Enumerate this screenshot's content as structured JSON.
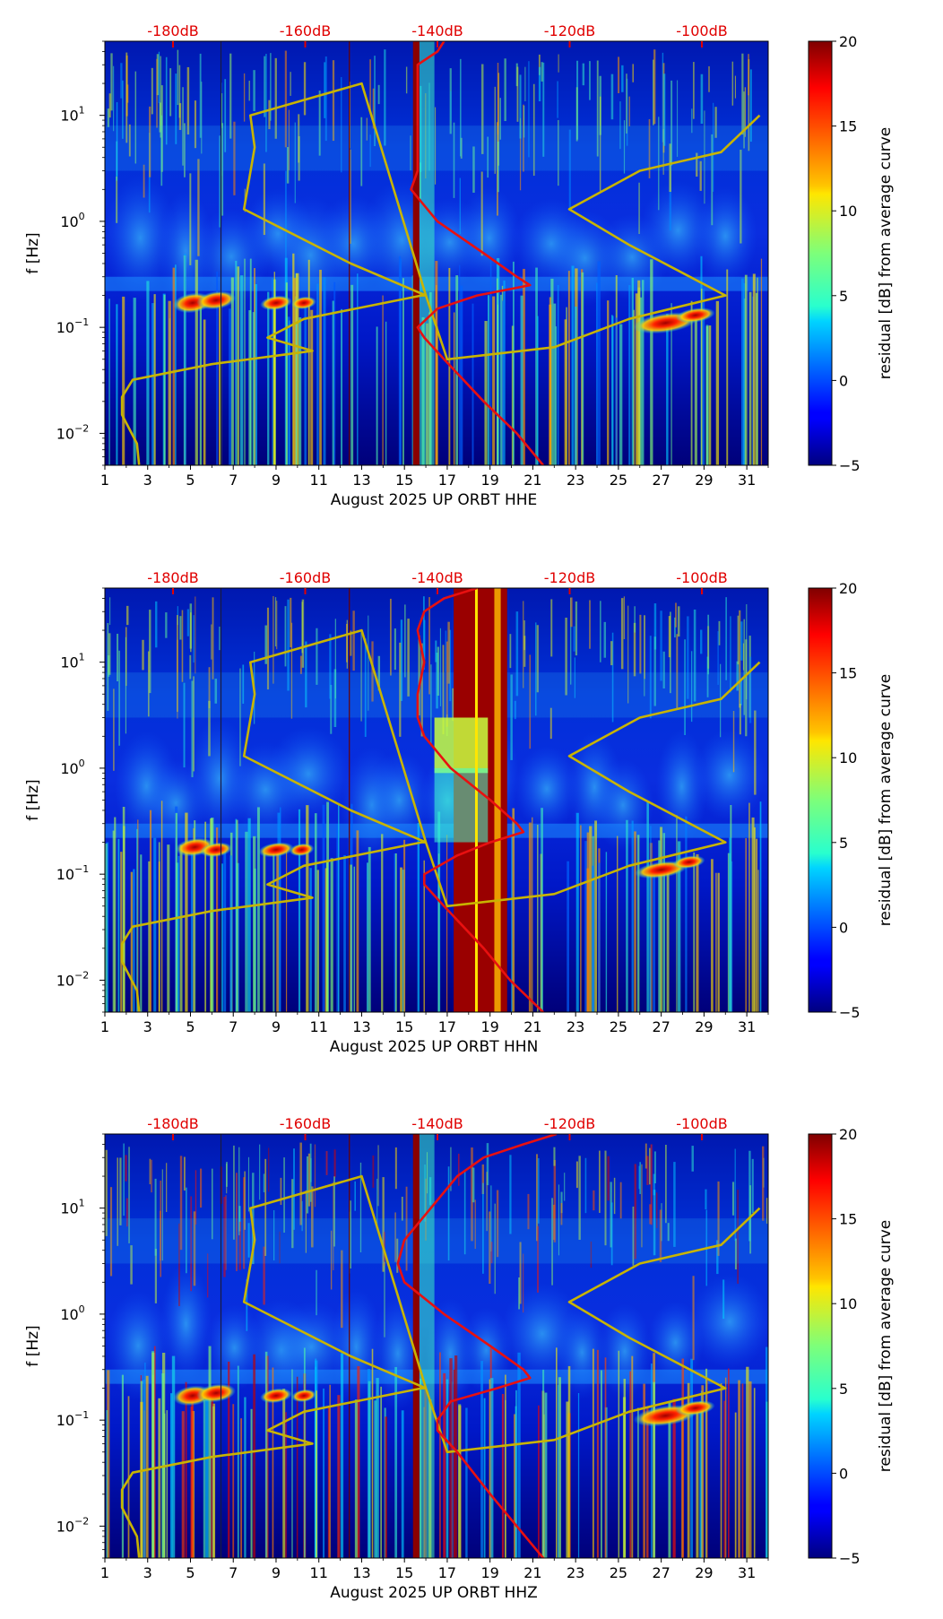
{
  "chart_data": [
    {
      "type": "heatmap",
      "component": "HHE",
      "xlabel": "August 2025 UP ORBT  HHE",
      "ylabel": "f [Hz]",
      "x_ticks": [
        "1",
        "3",
        "5",
        "7",
        "9",
        "11",
        "13",
        "15",
        "17",
        "19",
        "21",
        "23",
        "25",
        "27",
        "29",
        "31"
      ],
      "xlim": [
        1,
        32
      ],
      "ylim": [
        0.005,
        50
      ],
      "y_scale": "log",
      "y_ticks": [
        "10^-2",
        "10^-1",
        "10^0",
        "10^1"
      ],
      "top_axis_labels": [
        "-180dB",
        "-160dB",
        "-140dB",
        "-120dB",
        "-100dB"
      ],
      "top_axis_db": [
        -180,
        -160,
        -140,
        -120,
        -100
      ],
      "colorbar": {
        "label": "residual [dB] from average curve",
        "range": [
          -5,
          20
        ],
        "ticks": [
          "-5",
          "0",
          "5",
          "10",
          "15",
          "20"
        ]
      },
      "dark_bands": [
        {
          "day": 6.4,
          "width": 0.05,
          "color": "#1a1a40"
        },
        {
          "day": 12.4,
          "width": 0.05,
          "color": "#6a0000"
        },
        {
          "day": 15.4,
          "width": 0.3,
          "color": "#8b0000"
        }
      ],
      "red_curve_db": [
        [
          50,
          -139
        ],
        [
          40,
          -140
        ],
        [
          30,
          -143
        ],
        [
          20,
          -143
        ],
        [
          10,
          -143
        ],
        [
          5,
          -143
        ],
        [
          3,
          -143
        ],
        [
          2,
          -144
        ],
        [
          1,
          -140
        ],
        [
          0.5,
          -133
        ],
        [
          0.3,
          -128
        ],
        [
          0.25,
          -126
        ],
        [
          0.2,
          -134
        ],
        [
          0.15,
          -140
        ],
        [
          0.1,
          -143
        ],
        [
          0.08,
          -142
        ],
        [
          0.05,
          -139
        ],
        [
          0.02,
          -133
        ],
        [
          0.01,
          -128
        ],
        [
          0.005,
          -124
        ]
      ],
      "yellow_curve": [
        [
          2.6,
          0.005
        ],
        [
          2.5,
          0.008
        ],
        [
          1.8,
          0.015
        ],
        [
          1.8,
          0.022
        ],
        [
          2.3,
          0.032
        ],
        [
          6,
          0.045
        ],
        [
          10.7,
          0.06
        ],
        [
          8.6,
          0.08
        ],
        [
          10.3,
          0.12
        ],
        [
          15.8,
          0.2
        ],
        [
          16,
          0.2
        ],
        [
          12.5,
          0.4
        ],
        [
          7.5,
          1.3
        ],
        [
          8,
          5
        ],
        [
          7.8,
          10
        ],
        [
          13,
          20
        ],
        [
          16,
          0.2
        ],
        [
          17,
          0.05
        ],
        [
          22,
          0.065
        ],
        [
          25.5,
          0.12
        ],
        [
          30,
          0.2
        ],
        [
          25.5,
          0.6
        ],
        [
          22.7,
          1.3
        ],
        [
          26,
          3
        ],
        [
          29.8,
          4.5
        ],
        [
          31.6,
          10
        ]
      ]
    },
    {
      "type": "heatmap",
      "component": "HHN",
      "xlabel": "August 2025 UP ORBT  HHN",
      "ylabel": "f [Hz]",
      "x_ticks": [
        "1",
        "3",
        "5",
        "7",
        "9",
        "11",
        "13",
        "15",
        "17",
        "19",
        "21",
        "23",
        "25",
        "27",
        "29",
        "31"
      ],
      "xlim": [
        1,
        32
      ],
      "ylim": [
        0.005,
        50
      ],
      "y_scale": "log",
      "y_ticks": [
        "10^-2",
        "10^-1",
        "10^0",
        "10^1"
      ],
      "top_axis_labels": [
        "-180dB",
        "-160dB",
        "-140dB",
        "-120dB",
        "-100dB"
      ],
      "top_axis_db": [
        -180,
        -160,
        -140,
        -120,
        -100
      ],
      "colorbar": {
        "label": "residual [dB] from average curve",
        "range": [
          -5,
          20
        ],
        "ticks": [
          "-5",
          "0",
          "5",
          "10",
          "15",
          "20"
        ]
      },
      "dark_bands": [
        {
          "day": 6.4,
          "width": 0.05,
          "color": "#1a1a40"
        },
        {
          "day": 12.4,
          "width": 0.05,
          "color": "#6a0000"
        },
        {
          "day": 17.3,
          "width": 2.5,
          "color": "#9a0000"
        }
      ],
      "red_curve_db": [
        [
          50,
          -134
        ],
        [
          40,
          -139
        ],
        [
          30,
          -142
        ],
        [
          20,
          -143
        ],
        [
          10,
          -142
        ],
        [
          5,
          -143
        ],
        [
          3,
          -143
        ],
        [
          2,
          -142
        ],
        [
          1,
          -138
        ],
        [
          0.5,
          -132
        ],
        [
          0.3,
          -128
        ],
        [
          0.25,
          -127
        ],
        [
          0.2,
          -132
        ],
        [
          0.15,
          -137
        ],
        [
          0.1,
          -142
        ],
        [
          0.08,
          -142
        ],
        [
          0.05,
          -139
        ],
        [
          0.02,
          -133
        ],
        [
          0.01,
          -129
        ],
        [
          0.005,
          -124
        ]
      ],
      "yellow_curve": [
        [
          2.6,
          0.005
        ],
        [
          2.5,
          0.008
        ],
        [
          1.8,
          0.015
        ],
        [
          1.8,
          0.022
        ],
        [
          2.3,
          0.032
        ],
        [
          6,
          0.045
        ],
        [
          10.7,
          0.06
        ],
        [
          8.6,
          0.08
        ],
        [
          10.3,
          0.12
        ],
        [
          15.8,
          0.2
        ],
        [
          16,
          0.2
        ],
        [
          12.5,
          0.4
        ],
        [
          7.5,
          1.3
        ],
        [
          8,
          5
        ],
        [
          7.8,
          10
        ],
        [
          13,
          20
        ],
        [
          16,
          0.2
        ],
        [
          17,
          0.05
        ],
        [
          22,
          0.065
        ],
        [
          25.5,
          0.12
        ],
        [
          30,
          0.2
        ],
        [
          25.5,
          0.6
        ],
        [
          22.7,
          1.3
        ],
        [
          26,
          3
        ],
        [
          29.8,
          4.5
        ],
        [
          31.6,
          10
        ]
      ]
    },
    {
      "type": "heatmap",
      "component": "HHZ",
      "xlabel": "August 2025 UP ORBT  HHZ",
      "ylabel": "f [Hz]",
      "x_ticks": [
        "1",
        "3",
        "5",
        "7",
        "9",
        "11",
        "13",
        "15",
        "17",
        "19",
        "21",
        "23",
        "25",
        "27",
        "29",
        "31"
      ],
      "xlim": [
        1,
        32
      ],
      "ylim": [
        0.005,
        50
      ],
      "y_scale": "log",
      "y_ticks": [
        "10^-2",
        "10^-1",
        "10^0",
        "10^1"
      ],
      "top_axis_labels": [
        "-180dB",
        "-160dB",
        "-140dB",
        "-120dB",
        "-100dB"
      ],
      "top_axis_db": [
        -180,
        -160,
        -140,
        -120,
        -100
      ],
      "colorbar": {
        "label": "residual [dB] from average curve",
        "range": [
          -5,
          20
        ],
        "ticks": [
          "-5",
          "0",
          "5",
          "10",
          "15",
          "20"
        ]
      },
      "dark_bands": [
        {
          "day": 6.4,
          "width": 0.05,
          "color": "#1a1a40"
        },
        {
          "day": 12.4,
          "width": 0.05,
          "color": "#6a0000"
        },
        {
          "day": 15.4,
          "width": 0.3,
          "color": "#8b0000"
        }
      ],
      "red_curve_db": [
        [
          50,
          -122
        ],
        [
          40,
          -127
        ],
        [
          30,
          -133
        ],
        [
          20,
          -137
        ],
        [
          10,
          -141
        ],
        [
          5,
          -145
        ],
        [
          3,
          -146
        ],
        [
          2,
          -145
        ],
        [
          1,
          -139
        ],
        [
          0.5,
          -132
        ],
        [
          0.3,
          -127
        ],
        [
          0.25,
          -126
        ],
        [
          0.2,
          -131
        ],
        [
          0.15,
          -138
        ],
        [
          0.1,
          -140
        ],
        [
          0.08,
          -140
        ],
        [
          0.05,
          -137
        ],
        [
          0.02,
          -132
        ],
        [
          0.01,
          -128
        ],
        [
          0.005,
          -124
        ]
      ],
      "yellow_curve": [
        [
          2.6,
          0.005
        ],
        [
          2.5,
          0.008
        ],
        [
          1.8,
          0.015
        ],
        [
          1.8,
          0.022
        ],
        [
          2.3,
          0.032
        ],
        [
          6,
          0.045
        ],
        [
          10.7,
          0.06
        ],
        [
          8.6,
          0.08
        ],
        [
          10.3,
          0.12
        ],
        [
          15.8,
          0.2
        ],
        [
          16,
          0.2
        ],
        [
          12.5,
          0.4
        ],
        [
          7.5,
          1.3
        ],
        [
          8,
          5
        ],
        [
          7.8,
          10
        ],
        [
          13,
          20
        ],
        [
          16,
          0.2
        ],
        [
          17,
          0.05
        ],
        [
          22,
          0.065
        ],
        [
          25.5,
          0.12
        ],
        [
          30,
          0.2
        ],
        [
          25.5,
          0.6
        ],
        [
          22.7,
          1.3
        ],
        [
          26,
          3
        ],
        [
          29.8,
          4.5
        ],
        [
          31.6,
          10
        ]
      ]
    }
  ]
}
